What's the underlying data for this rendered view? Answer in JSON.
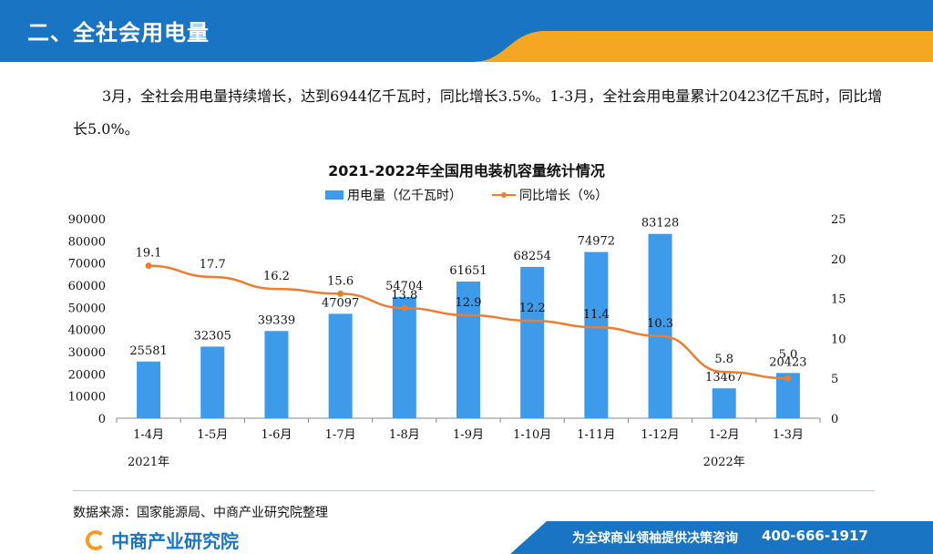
{
  "header": {
    "title": "二、全社会用电量"
  },
  "intro": {
    "text": "3月，全社会用电量持续增长，达到6944亿千瓦时，同比增长3.5%。1-3月，全社会用电量累计20423亿千瓦时，同比增长5.0%。"
  },
  "source": {
    "text": "数据来源：国家能源局、中商产业研究院整理"
  },
  "footer": {
    "logo": "中商产业研究院",
    "slogan": "为全球商业领袖提供决策咨询",
    "phone": "400-666-1917"
  },
  "colors": {
    "header_blue": "#1a74c4",
    "header_orange": "#f5a623",
    "bar": "#3d9be9",
    "line": "#ed7d31"
  },
  "chart_data": {
    "type": "bar",
    "title": "2021-2022年全国用电装机容量统计情况",
    "categories": [
      "1-4月",
      "1-5月",
      "1-6月",
      "1-7月",
      "1-8月",
      "1-9月",
      "1-10月",
      "1-11月",
      "1-12月",
      "1-2月",
      "1-3月"
    ],
    "year_labels": [
      "2021年",
      "2022年"
    ],
    "series": [
      {
        "name": "用电量（亿千瓦时）",
        "type": "bar",
        "axis": "left",
        "values": [
          25581,
          32305,
          39339,
          47097,
          54704,
          61651,
          68254,
          74972,
          83128,
          13467,
          20423
        ]
      },
      {
        "name": "同比增长（%）",
        "type": "line",
        "axis": "right",
        "values": [
          19.1,
          17.7,
          16.2,
          15.6,
          13.8,
          12.9,
          12.2,
          11.4,
          10.3,
          5.8,
          5.0
        ]
      }
    ],
    "bar_labels": [
      "25581",
      "32305",
      "39339",
      "47097",
      "54704",
      "61651",
      "68254",
      "74972",
      "83128",
      "13467",
      "20423"
    ],
    "line_labels": [
      "19.1",
      "17.7",
      "16.2",
      "15.6",
      "13.8",
      "12.9",
      "12.2",
      "11.4",
      "10.3",
      "5.8",
      "5.0"
    ],
    "ylim_left": [
      0,
      90000
    ],
    "yticks_left": [
      "0",
      "10000",
      "20000",
      "30000",
      "40000",
      "50000",
      "60000",
      "70000",
      "80000",
      "90000"
    ],
    "ylim_right": [
      0,
      25
    ],
    "yticks_right": [
      "0",
      "5",
      "10",
      "15",
      "20",
      "25"
    ],
    "grid": false,
    "legend": "top"
  }
}
